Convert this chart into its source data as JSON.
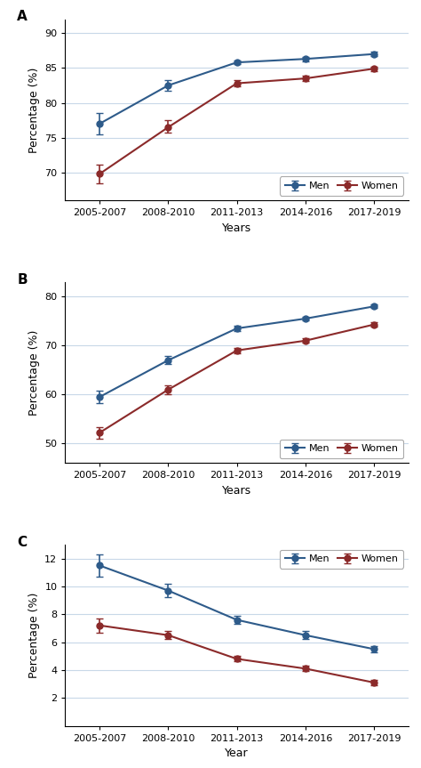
{
  "x_labels": [
    "2005-2007",
    "2008-2010",
    "2011-2013",
    "2014-2016",
    "2017-2019"
  ],
  "x_positions": [
    0,
    1,
    2,
    3,
    4
  ],
  "panel_A": {
    "label": "A",
    "men_y": [
      77.0,
      82.5,
      85.8,
      86.3,
      87.0
    ],
    "men_yerr_lo": [
      1.5,
      0.8,
      0.3,
      0.3,
      0.3
    ],
    "men_yerr_hi": [
      1.5,
      0.7,
      0.3,
      0.3,
      0.3
    ],
    "women_y": [
      69.8,
      76.5,
      82.8,
      83.5,
      84.9
    ],
    "women_yerr_lo": [
      1.3,
      0.8,
      0.4,
      0.4,
      0.3
    ],
    "women_yerr_hi": [
      1.3,
      1.0,
      0.4,
      0.4,
      0.3
    ],
    "ylabel": "Percentage (%)",
    "xlabel": "Years",
    "ylim": [
      66,
      92
    ],
    "yticks": [
      70,
      75,
      80,
      85,
      90
    ],
    "legend_loc": "lower right",
    "legend_bbox": null
  },
  "panel_B": {
    "label": "B",
    "men_y": [
      59.5,
      67.0,
      73.5,
      75.5,
      78.0
    ],
    "men_yerr_lo": [
      1.2,
      0.8,
      0.5,
      0.4,
      0.4
    ],
    "men_yerr_hi": [
      1.2,
      0.8,
      0.5,
      0.4,
      0.4
    ],
    "women_y": [
      52.2,
      61.0,
      69.0,
      71.0,
      74.3
    ],
    "women_yerr_lo": [
      1.2,
      0.9,
      0.5,
      0.4,
      0.5
    ],
    "women_yerr_hi": [
      1.2,
      0.9,
      0.5,
      0.5,
      0.5
    ],
    "ylabel": "Percentage (%)",
    "xlabel": "Years",
    "ylim": [
      46,
      83
    ],
    "yticks": [
      50,
      60,
      70,
      80
    ],
    "legend_loc": "lower right",
    "legend_bbox": null
  },
  "panel_C": {
    "label": "C",
    "men_y": [
      11.5,
      9.7,
      7.6,
      6.5,
      5.5
    ],
    "men_yerr_lo": [
      0.8,
      0.5,
      0.3,
      0.3,
      0.2
    ],
    "men_yerr_hi": [
      0.8,
      0.5,
      0.3,
      0.3,
      0.2
    ],
    "women_y": [
      7.2,
      6.5,
      4.8,
      4.1,
      3.1
    ],
    "women_yerr_lo": [
      0.5,
      0.3,
      0.2,
      0.2,
      0.2
    ],
    "women_yerr_hi": [
      0.5,
      0.3,
      0.2,
      0.2,
      0.2
    ],
    "ylabel": "Percentage (%)",
    "xlabel": "Year",
    "ylim": [
      0,
      13
    ],
    "yticks": [
      2,
      4,
      6,
      8,
      10,
      12
    ],
    "legend_loc": "upper right",
    "legend_bbox": null
  },
  "men_color": "#2E5B8A",
  "women_color": "#8B2A2A",
  "line_width": 1.5,
  "marker_size": 5,
  "marker": "o",
  "capsize": 3,
  "elinewidth": 1.2,
  "grid_color": "#c8d8e8",
  "grid_alpha": 1.0,
  "label_fontsize": 9,
  "tick_fontsize": 8,
  "legend_fontsize": 8,
  "panel_label_fontsize": 11,
  "background_color": "#ffffff"
}
